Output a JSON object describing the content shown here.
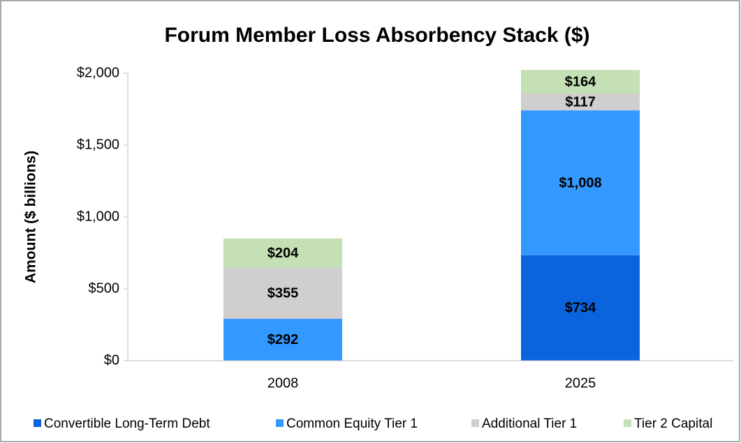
{
  "chart_data": {
    "type": "stacked_bar",
    "title": "Forum Member Loss Absorbency Stack ($)",
    "y_label": "Amount ($ billions)",
    "categories": [
      "2008",
      "2025"
    ],
    "series": [
      {
        "name": "Convertible Long-Term Debt",
        "color": "#0b64dd",
        "values": [
          null,
          734
        ],
        "value_labels": [
          null,
          "$734"
        ]
      },
      {
        "name": "Common Equity Tier 1",
        "color": "#3399ff",
        "values": [
          292,
          1008
        ],
        "value_labels": [
          "$292",
          "$1,008"
        ]
      },
      {
        "name": "Additional Tier 1",
        "color": "#d0cece",
        "values": [
          355,
          117
        ],
        "value_labels": [
          "$355",
          "$117"
        ]
      },
      {
        "name": "Tier 2 Capital",
        "color": "#c5e0b4",
        "values": [
          204,
          164
        ],
        "value_labels": [
          "$204",
          "$164"
        ]
      }
    ],
    "ylim": [
      0,
      2000
    ],
    "yticks": [
      {
        "value": 0,
        "label": "$0"
      },
      {
        "value": 500,
        "label": "$500"
      },
      {
        "value": 1000,
        "label": "$1,000"
      },
      {
        "value": 1500,
        "label": "$1,500"
      },
      {
        "value": 2000,
        "label": "$2,000"
      }
    ],
    "legend": "bottom"
  }
}
